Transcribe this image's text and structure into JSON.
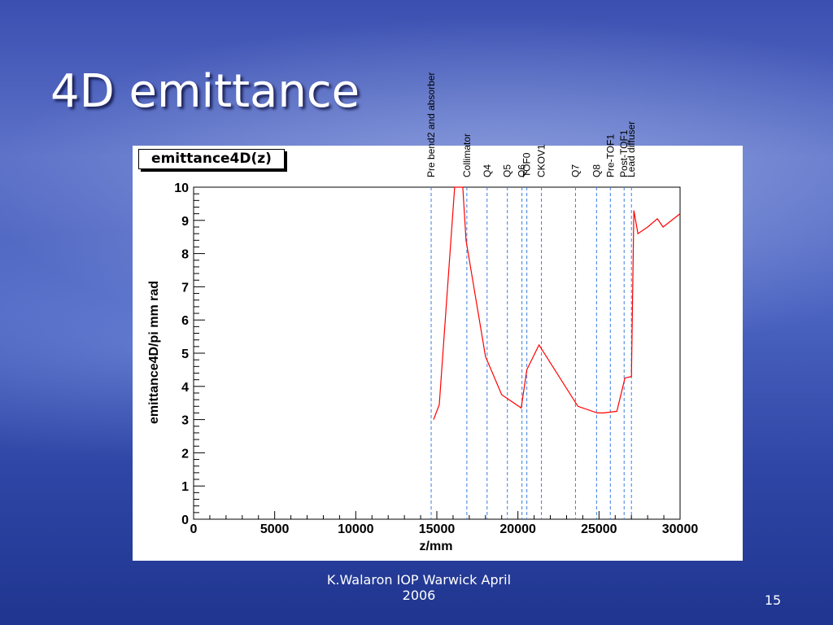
{
  "slide": {
    "title": "4D emittance",
    "footer": "K.Walaron IOP Warwick April 2006",
    "page_number": "15"
  },
  "chart_data": {
    "type": "line",
    "title": "emittance4D(z)",
    "xlabel": "z/mm",
    "ylabel": "emittance4D/pi mm rad",
    "xlim": [
      0,
      30000
    ],
    "ylim": [
      0,
      10
    ],
    "x_ticks": [
      0,
      5000,
      10000,
      15000,
      20000,
      25000,
      30000
    ],
    "y_ticks": [
      0,
      1,
      2,
      3,
      4,
      5,
      6,
      7,
      8,
      9,
      10
    ],
    "grid": false,
    "series": [
      {
        "color": "#ff0000",
        "points": [
          [
            14800,
            3.0
          ],
          [
            15150,
            3.45
          ],
          [
            16100,
            10.0
          ],
          [
            16600,
            10.0
          ],
          [
            16800,
            8.4
          ],
          [
            18000,
            4.9
          ],
          [
            19000,
            3.75
          ],
          [
            20200,
            3.35
          ],
          [
            20550,
            4.5
          ],
          [
            21300,
            5.25
          ],
          [
            23700,
            3.4
          ],
          [
            24900,
            3.2
          ],
          [
            25300,
            3.2
          ],
          [
            26100,
            3.25
          ],
          [
            26600,
            4.25
          ],
          [
            27000,
            4.3
          ],
          [
            27150,
            9.3
          ],
          [
            27400,
            8.6
          ],
          [
            28000,
            8.8
          ],
          [
            28600,
            9.05
          ],
          [
            28950,
            8.8
          ],
          [
            30000,
            9.2
          ]
        ]
      }
    ],
    "markers": [
      {
        "label": "Pre bend2 and absorber",
        "z": 14650
      },
      {
        "label": "Collimator",
        "z": 16850
      },
      {
        "label": "Q4",
        "z": 18100
      },
      {
        "label": "Q5",
        "z": 19350
      },
      {
        "label": "Q6",
        "z": 20250
      },
      {
        "label": "TOF0",
        "z": 20550
      },
      {
        "label": "CKOV1",
        "z": 21450
      },
      {
        "label": "Q7",
        "z": 23550
      },
      {
        "label": "Q8",
        "z": 24850
      },
      {
        "label": "Pre-TOF1",
        "z": 25700
      },
      {
        "label": "Post-TOF1",
        "z": 26550
      },
      {
        "label": "Lead diffuser",
        "z": 27000
      }
    ],
    "marker_color": "#3a7de0"
  }
}
